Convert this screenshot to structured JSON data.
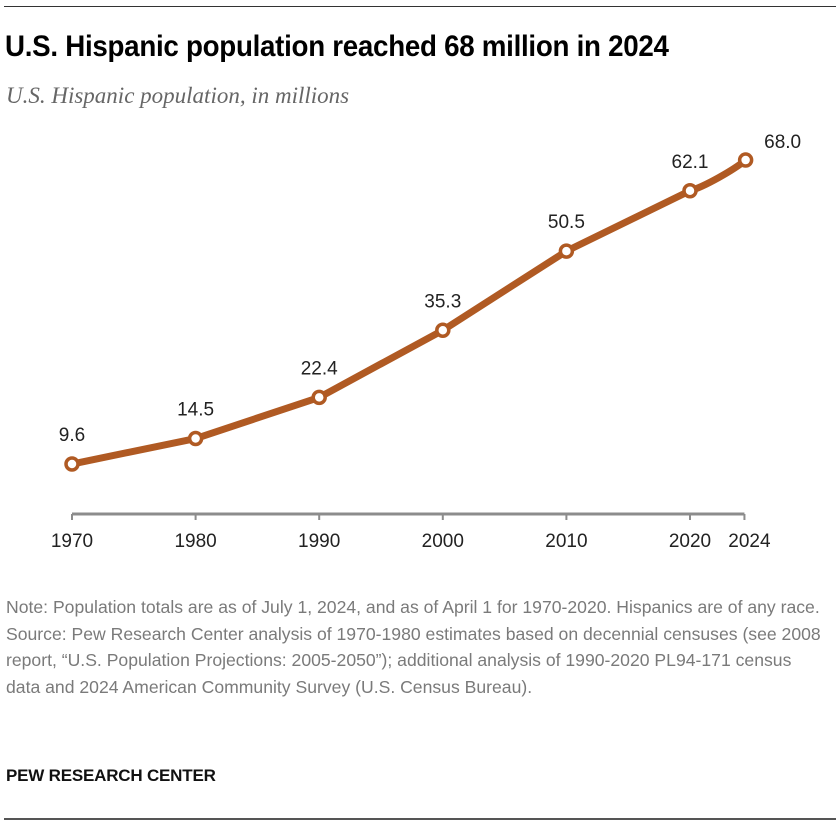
{
  "title": "U.S. Hispanic population reached 68 million in 2024",
  "subtitle": "U.S. Hispanic population, in millions",
  "notes": {
    "note": "Note: Population totals are as of July 1, 2024, and as of April 1 for 1970-2020. Hispanics are of any race.",
    "source": "Source: Pew Research Center analysis of 1970-1980 estimates based on decennial censuses (see 2008 report, “U.S. Population Projections: 2005-2050”); additional analysis of 1990-2020 PL94-171 census data and 2024 American Community Survey (U.S. Census Bureau)."
  },
  "brand": "PEW RESEARCH CENTER",
  "colors": {
    "line": "#b05a23",
    "axis": "#8c8c8c",
    "label": "#222222"
  },
  "chart_data": {
    "type": "line",
    "title": "U.S. Hispanic population reached 68 million in 2024",
    "subtitle": "U.S. Hispanic population, in millions",
    "xlabel": "",
    "ylabel": "",
    "x": [
      1970,
      1980,
      1990,
      2000,
      2010,
      2020,
      2024.5
    ],
    "x_tick_values": [
      1970,
      1980,
      1990,
      2000,
      2010,
      2020,
      2024
    ],
    "x_tick_labels": [
      "1970",
      "1980",
      "1990",
      "2000",
      "2010",
      "2020",
      "2024"
    ],
    "series": [
      {
        "name": "U.S. Hispanic population (millions)",
        "values": [
          9.6,
          14.5,
          22.4,
          35.3,
          50.5,
          62.1,
          68.0
        ],
        "labels": [
          "9.6",
          "14.5",
          "22.4",
          "35.3",
          "50.5",
          "62.1",
          "68.0"
        ]
      }
    ],
    "xlim": [
      1970,
      2025.6
    ],
    "ylim": [
      0,
      68.0
    ],
    "grid": false,
    "legend": "none"
  }
}
